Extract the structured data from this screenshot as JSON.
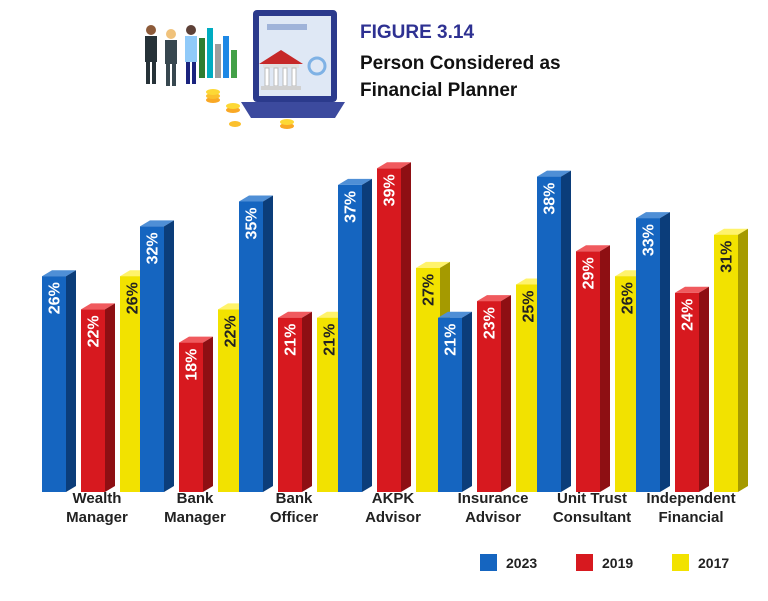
{
  "header": {
    "figure_label": "FIGURE 3.14",
    "title_line1": "Person Considered as",
    "title_line2": "Financial Planner"
  },
  "colors": {
    "accent": "#2e3192",
    "series_2023": "#1565c0",
    "series_2019": "#d7191f",
    "series_2017": "#f2e200"
  },
  "chart_data": {
    "type": "bar",
    "title": "Person Considered as Financial Planner",
    "categories": [
      [
        "Wealth",
        "Manager"
      ],
      [
        "Bank",
        "Manager"
      ],
      [
        "Bank",
        "Officer"
      ],
      [
        "AKPK",
        "Advisor"
      ],
      [
        "Insurance",
        "Advisor"
      ],
      [
        "Unit Trust",
        "Consultant"
      ],
      [
        "Independent",
        "Financial"
      ]
    ],
    "series": [
      {
        "name": "2023",
        "values": [
          26,
          32,
          35,
          37,
          21,
          38,
          33
        ],
        "labels": [
          "26%",
          "32%",
          "35%",
          "37%",
          "21%",
          "38%",
          "33%"
        ]
      },
      {
        "name": "2019",
        "values": [
          22,
          18,
          21,
          39,
          23,
          29,
          24
        ],
        "labels": [
          "22%",
          "18%",
          "21%",
          "39%",
          "23%",
          "29%",
          "24%"
        ]
      },
      {
        "name": "2017",
        "values": [
          26,
          22,
          21,
          27,
          25,
          26,
          31
        ],
        "labels": [
          "26%",
          "22%",
          "21%",
          "27%",
          "25%",
          "26%",
          "31%"
        ]
      }
    ],
    "unit": "%",
    "ylim": [
      0,
      40
    ],
    "legend": [
      "2023",
      "2019",
      "2017"
    ],
    "legend_position": "bottom-right",
    "grid": false,
    "xlabel": "",
    "ylabel": ""
  }
}
